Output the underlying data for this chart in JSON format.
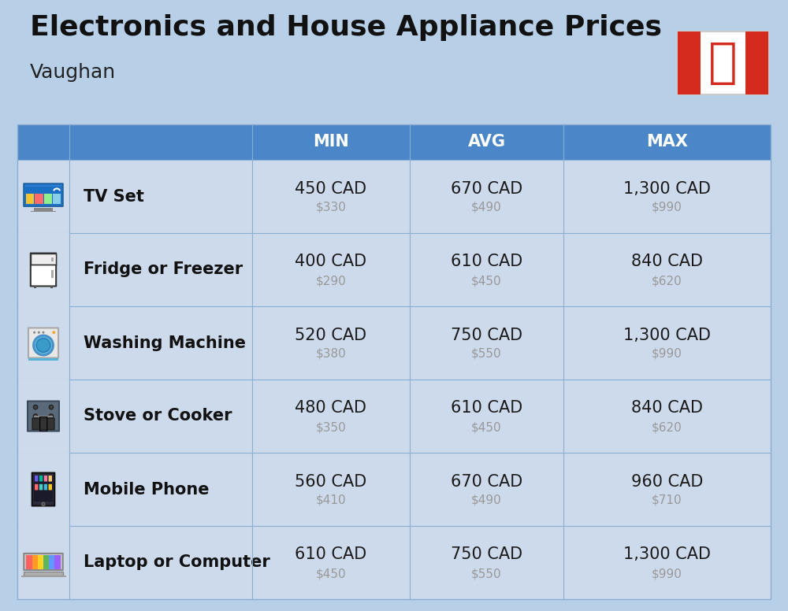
{
  "title": "Electronics and House Appliance Prices",
  "subtitle": "Vaughan",
  "background_color": "#b8cfe8",
  "header_bg_color": "#4a86c8",
  "header_text_color": "#ffffff",
  "row_bg_color_light": "#ccdaed",
  "row_bg_color_dark": "#b8cfe8",
  "divider_color": "#8aaecf",
  "item_name_color": "#111111",
  "cad_value_color": "#1a1a1a",
  "usd_value_color": "#999999",
  "columns": [
    "MIN",
    "AVG",
    "MAX"
  ],
  "rows": [
    {
      "name": "TV Set",
      "min_cad": "450 CAD",
      "min_usd": "$330",
      "avg_cad": "670 CAD",
      "avg_usd": "$490",
      "max_cad": "1,300 CAD",
      "max_usd": "$990"
    },
    {
      "name": "Fridge or Freezer",
      "min_cad": "400 CAD",
      "min_usd": "$290",
      "avg_cad": "610 CAD",
      "avg_usd": "$450",
      "max_cad": "840 CAD",
      "max_usd": "$620"
    },
    {
      "name": "Washing Machine",
      "min_cad": "520 CAD",
      "min_usd": "$380",
      "avg_cad": "750 CAD",
      "avg_usd": "$550",
      "max_cad": "1,300 CAD",
      "max_usd": "$990"
    },
    {
      "name": "Stove or Cooker",
      "min_cad": "480 CAD",
      "min_usd": "$350",
      "avg_cad": "610 CAD",
      "avg_usd": "$450",
      "max_cad": "840 CAD",
      "max_usd": "$620"
    },
    {
      "name": "Mobile Phone",
      "min_cad": "560 CAD",
      "min_usd": "$410",
      "avg_cad": "670 CAD",
      "avg_usd": "$490",
      "max_cad": "960 CAD",
      "max_usd": "$710"
    },
    {
      "name": "Laptop or Computer",
      "min_cad": "610 CAD",
      "min_usd": "$450",
      "avg_cad": "750 CAD",
      "avg_usd": "$550",
      "max_cad": "1,300 CAD",
      "max_usd": "$990"
    }
  ]
}
